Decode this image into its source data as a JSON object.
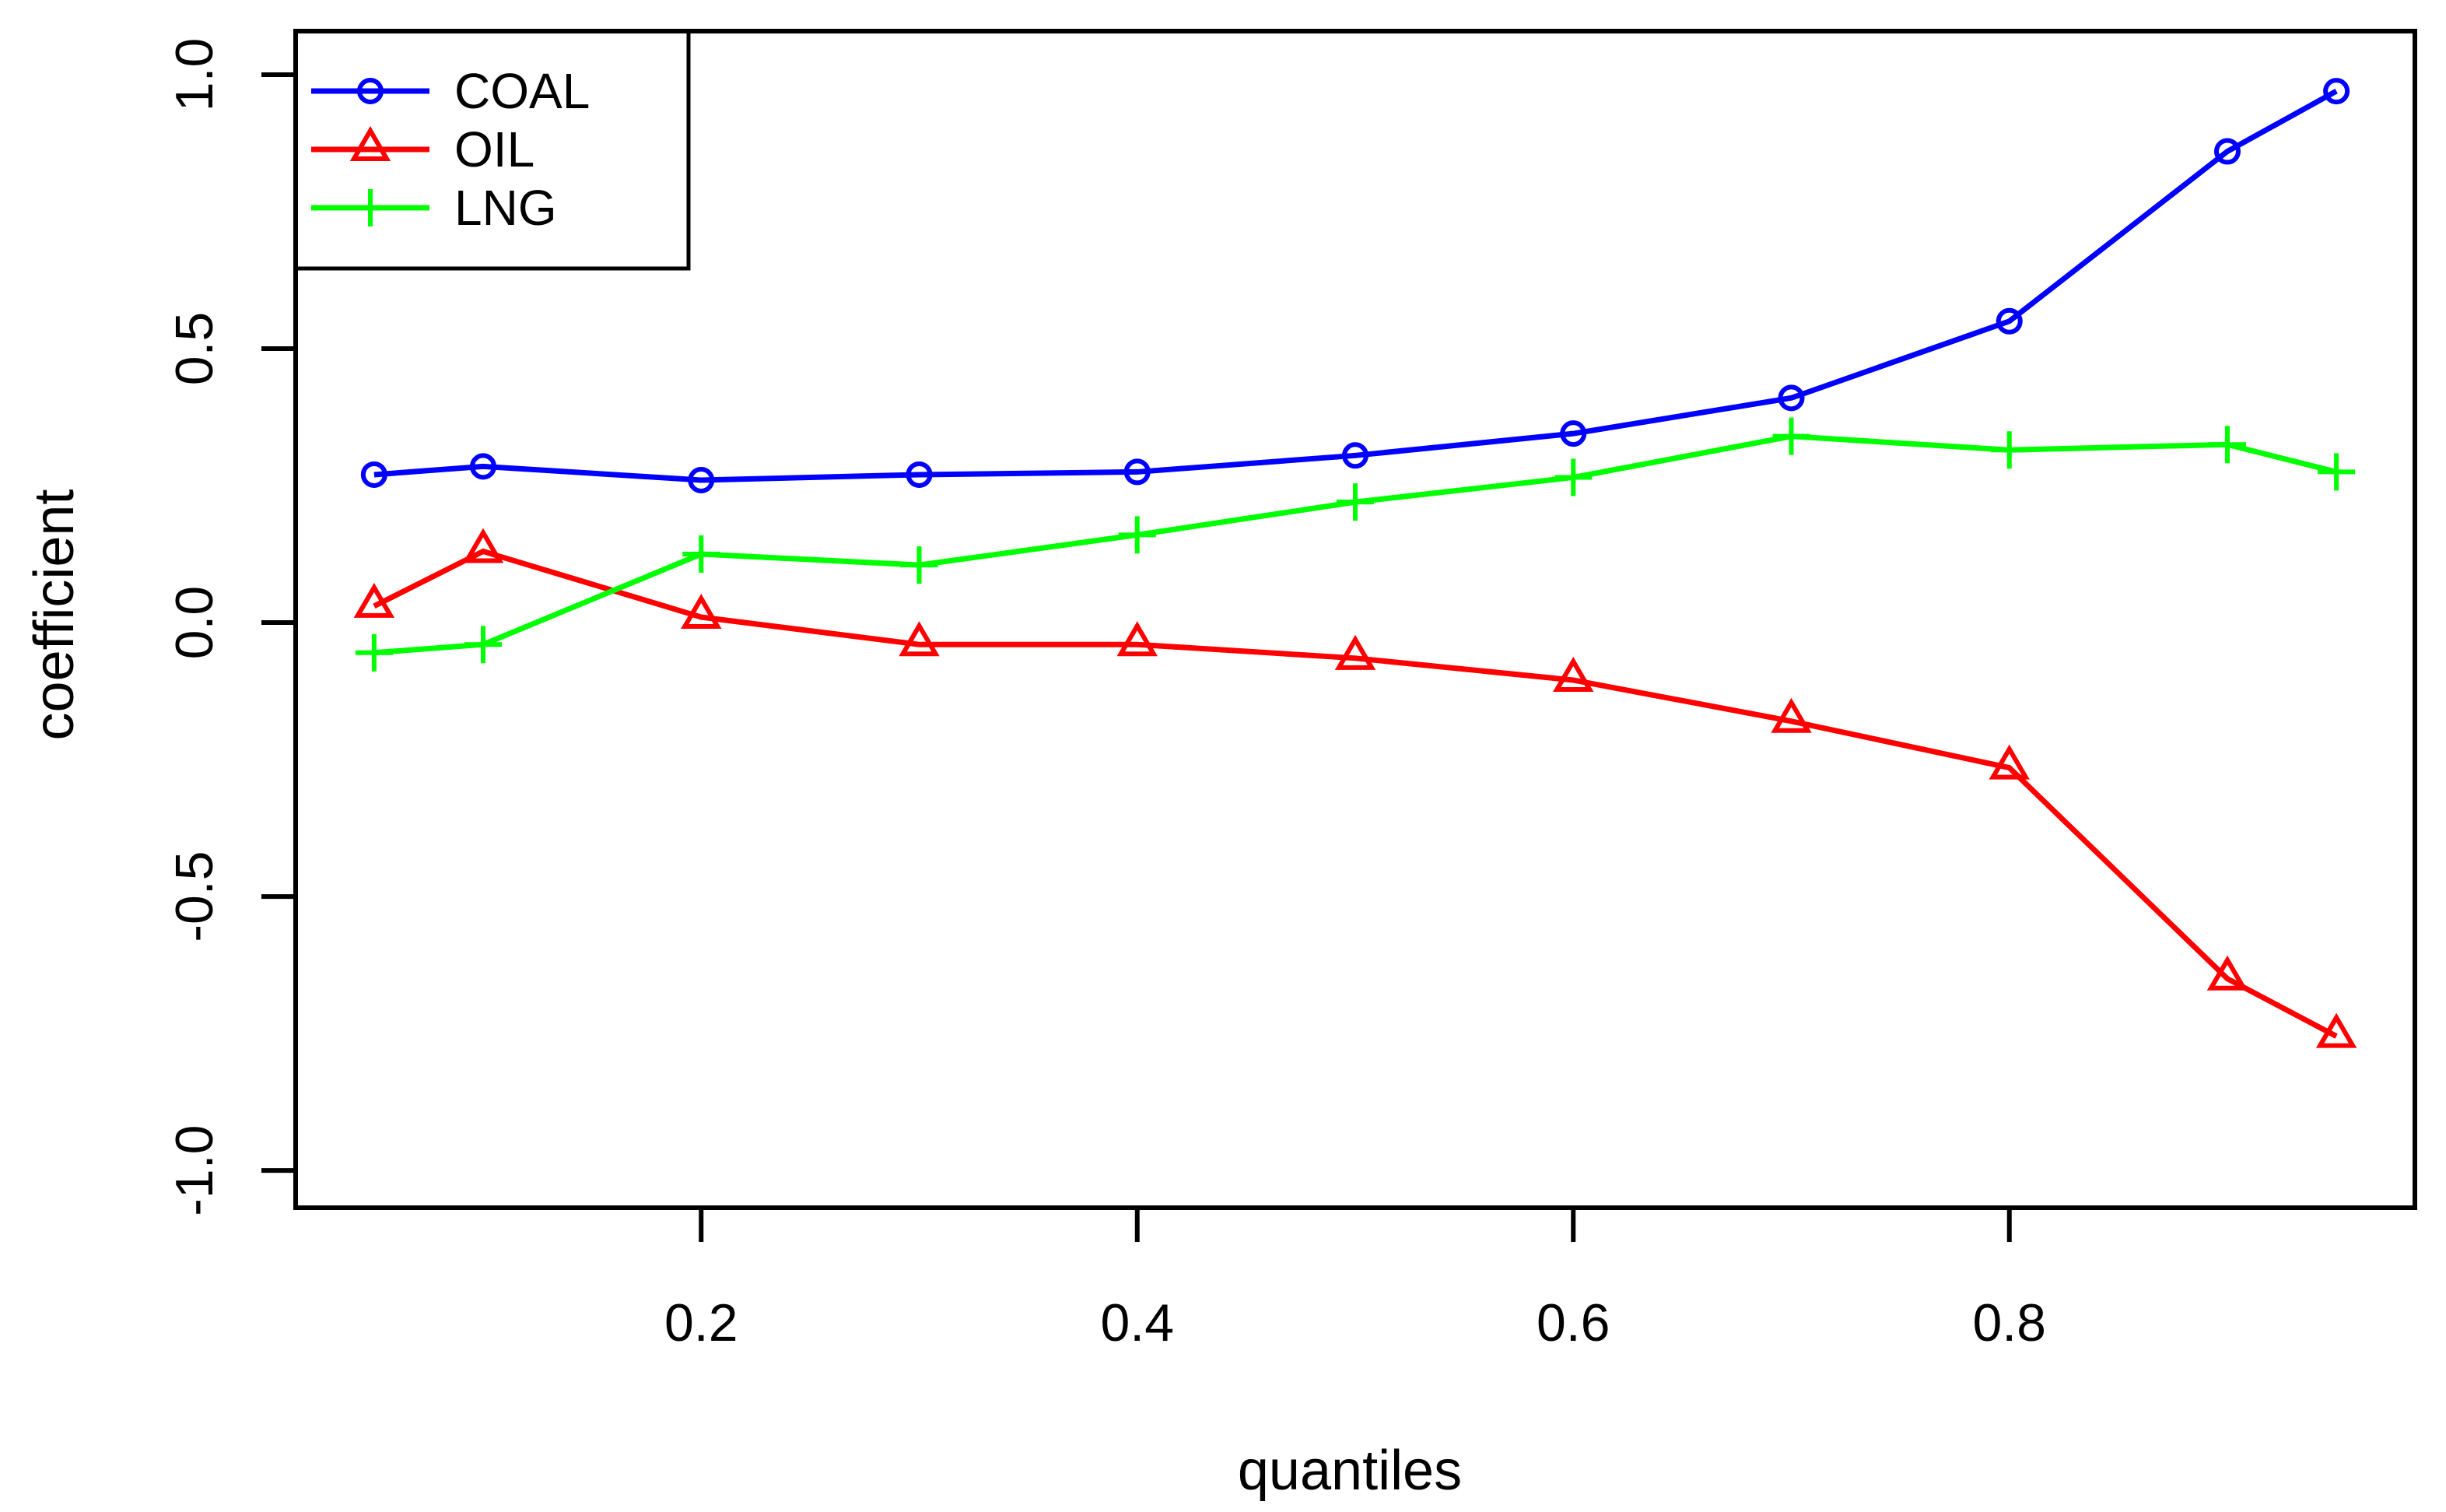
{
  "page": {
    "background": "#ffffff"
  },
  "chart_data": {
    "type": "line",
    "title": "",
    "xlabel": "quantiles",
    "ylabel": "coefficient",
    "x": [
      0.05,
      0.1,
      0.2,
      0.3,
      0.4,
      0.5,
      0.6,
      0.7,
      0.8,
      0.9,
      0.95
    ],
    "series": [
      {
        "name": "COAL",
        "color": "#0000FF",
        "marker": "circle",
        "values": [
          0.27,
          0.285,
          0.26,
          0.27,
          0.275,
          0.305,
          0.345,
          0.41,
          0.55,
          0.86,
          0.97
        ]
      },
      {
        "name": "OIL",
        "color": "#FF0000",
        "marker": "triangle",
        "values": [
          0.03,
          0.13,
          0.01,
          -0.04,
          -0.04,
          -0.065,
          -0.105,
          -0.18,
          -0.265,
          -0.65,
          -0.755
        ]
      },
      {
        "name": "LNG",
        "color": "#00FF00",
        "marker": "plus",
        "values": [
          -0.055,
          -0.04,
          0.125,
          0.105,
          0.16,
          0.22,
          0.265,
          0.34,
          0.315,
          0.325,
          0.275
        ]
      }
    ],
    "x_ticks": {
      "values": [
        0.2,
        0.4,
        0.6,
        0.8
      ],
      "labels": [
        "0.2",
        "0.4",
        "0.6",
        "0.8"
      ]
    },
    "y_ticks": {
      "values": [
        -1.0,
        -0.5,
        0.0,
        0.5,
        1.0
      ],
      "labels": [
        "-1.0",
        "-0.5",
        "0.0",
        "0.5",
        "1.0"
      ]
    },
    "xlim": [
      0.014,
      0.986
    ],
    "ylim": [
      -1.068,
      1.0795
    ],
    "grid": false,
    "legend_position": "top-left",
    "legend": {
      "entries": [
        "COAL",
        "OIL",
        "LNG"
      ]
    },
    "axis_color": "#000000",
    "text_color": "#000000"
  }
}
